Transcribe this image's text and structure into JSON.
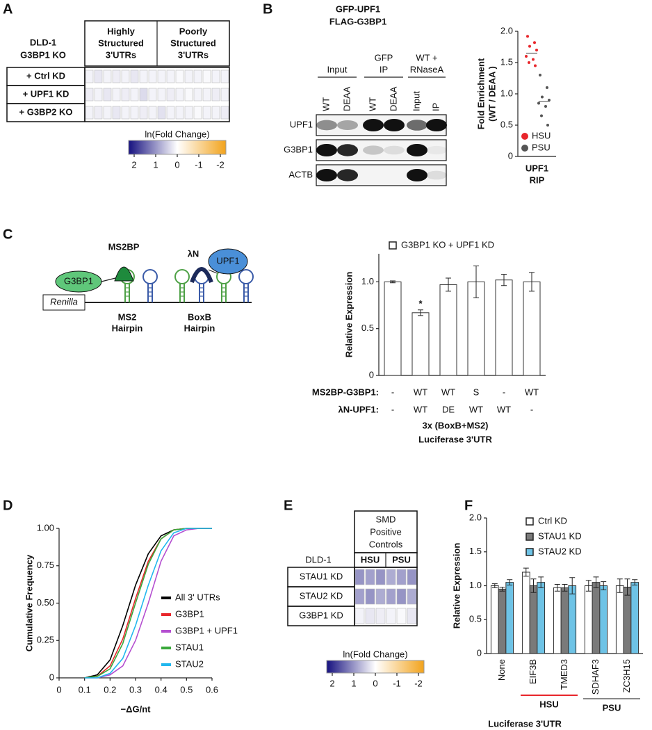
{
  "panel_labels": [
    "A",
    "B",
    "C",
    "D",
    "E",
    "F"
  ],
  "panel_a": {
    "row_header": [
      "DLD-1",
      "G3BP1 KO"
    ],
    "column_groups": [
      [
        "Highly",
        "Structured",
        "3'UTRs"
      ],
      [
        "Poorly",
        "Structured",
        "3'UTRs"
      ]
    ],
    "rows": [
      {
        "label": "+ Ctrl KD",
        "values": [
          0.1,
          0.2,
          0.1,
          0.15,
          0.1,
          0.2,
          0.1,
          0.1,
          0.1,
          0.1,
          0.05,
          0.1,
          0.1,
          0.05,
          0.1,
          0.1
        ]
      },
      {
        "label": "+ UPF1 KD",
        "values": [
          0.15,
          0.1,
          0.2,
          0.1,
          0.15,
          0.1,
          0.3,
          0.1,
          0.1,
          0.15,
          0.1,
          0.05,
          0.1,
          0.1,
          0.15,
          0.1
        ]
      },
      {
        "label": "+ G3BP2 KO",
        "values": [
          0.1,
          0.15,
          0.1,
          0.2,
          0.1,
          0.1,
          0.15,
          0.1,
          0.25,
          0.1,
          0.1,
          0.1,
          0.05,
          0.1,
          0.1,
          0.15
        ]
      }
    ],
    "colorbar": {
      "label": "ln(Fold Change)",
      "lim": [
        2,
        -2
      ],
      "ticks": [
        2,
        1,
        0,
        -1,
        -2
      ],
      "colors": [
        "#16117f",
        "#ffffff",
        "#f2a31c"
      ]
    }
  },
  "panel_b_blot": {
    "title": [
      "GFP-UPF1",
      "FLAG-G3BP1"
    ],
    "groups": [
      [
        "Input"
      ],
      [
        "GFP",
        "IP"
      ],
      [
        "WT +",
        "RNaseA"
      ]
    ],
    "lanes": [
      "WT",
      "DEAA",
      "WT",
      "DEAA",
      "Input",
      "IP"
    ],
    "rows": [
      "UPF1",
      "G3BP1",
      "ACTB"
    ]
  },
  "panel_c_diagram": {
    "ms2bp": "MS2BP",
    "g3bp1": "G3BP1",
    "lambda_n": "λN",
    "upf1": "UPF1",
    "renilla": "Renilla",
    "ms2_hairpin": [
      "MS2",
      "Hairpin"
    ],
    "boxb_hairpin": [
      "BoxB",
      "Hairpin"
    ]
  },
  "panel_e": {
    "title": [
      "SMD",
      "Positive",
      "Controls"
    ],
    "row_header": "DLD-1",
    "column_groups": [
      "HSU",
      "PSU"
    ],
    "rows": [
      {
        "label": "STAU1 KD",
        "values": [
          0.9,
          0.8,
          0.9,
          0.7,
          0.8,
          0.9
        ]
      },
      {
        "label": "STAU2 KD",
        "values": [
          0.8,
          0.9,
          0.7,
          0.8,
          0.9,
          0.7
        ]
      },
      {
        "label": "G3BP1 KD",
        "values": [
          0.1,
          0.2,
          0.15,
          0.1,
          0.05,
          0.2
        ]
      }
    ],
    "colorbar": {
      "label": "ln(Fold Change)",
      "lim": [
        2,
        -2
      ],
      "ticks": [
        2,
        1,
        0,
        -1,
        -2
      ],
      "colors": [
        "#16117f",
        "#ffffff",
        "#f2a31c"
      ]
    }
  },
  "chart_data": [
    {
      "type": "strip",
      "ylabel": [
        "Fold Enrichment",
        "(WT / DEAA )"
      ],
      "xlabel": [
        "UPF1",
        "RIP"
      ],
      "ylim": [
        0,
        2
      ],
      "yticks": [
        0,
        0.5,
        {
          "value": 1,
          "label": "1.0"
        },
        1.5,
        {
          "value": 2,
          "label": "2.0"
        }
      ],
      "series": [
        {
          "name": "HSU",
          "color": "#e8262b",
          "values": [
            1.92,
            1.82,
            1.76,
            1.7,
            1.6,
            1.55,
            1.5,
            1.45
          ],
          "mean": 1.65
        },
        {
          "name": "PSU",
          "color": "#555555",
          "values": [
            1.3,
            1.1,
            0.95,
            0.9,
            0.85,
            0.8,
            0.65,
            0.5
          ],
          "mean": 0.88
        }
      ]
    },
    {
      "type": "bar",
      "ylabel": "Relative Expression",
      "xlabel": [
        "3x (BoxB+MS2)",
        "Luciferase 3'UTR"
      ],
      "ylim": [
        0,
        1.3
      ],
      "yticks": [
        0,
        0.5,
        {
          "value": 1,
          "label": "1.0"
        }
      ],
      "series": [
        {
          "name": "G3BP1 KO + UPF1 KD",
          "color": "#ffffff",
          "values": [
            1,
            0.67,
            0.97,
            1,
            1.02,
            1
          ],
          "errors": [
            0.01,
            0.03,
            0.07,
            0.17,
            0.06,
            0.1
          ]
        }
      ],
      "rows": [
        {
          "label": "MS2BP-G3BP1:",
          "values": [
            "-",
            "WT",
            "WT",
            "S",
            "-",
            "WT"
          ]
        },
        {
          "label": "λN-UPF1:",
          "values": [
            "-",
            "WT",
            "DE",
            "WT",
            "WT",
            "-"
          ]
        }
      ],
      "annotations": [
        {
          "text": "*",
          "category": 1
        }
      ]
    },
    {
      "type": "line",
      "ylabel": "Cumulative Frequency",
      "xlabel": "−ΔG/nt",
      "xlim": [
        0,
        0.6
      ],
      "xticks": [
        0,
        0.1,
        0.2,
        0.3,
        0.4,
        0.5,
        0.6
      ],
      "ylim": [
        0,
        1
      ],
      "yticks": [
        0,
        0.25,
        {
          "value": 0.5,
          "label": "0.50"
        },
        0.75,
        {
          "value": 1,
          "label": "1.00"
        }
      ],
      "x": [
        0.1,
        0.15,
        0.2,
        0.25,
        0.3,
        0.35,
        0.4,
        0.45,
        0.5,
        0.55,
        0.6
      ],
      "series": [
        {
          "name": "All 3' UTRs",
          "color": "#000000",
          "values": [
            0,
            0.02,
            0.12,
            0.35,
            0.62,
            0.83,
            0.95,
            0.99,
            1,
            1,
            1
          ]
        },
        {
          "name": "G3BP1",
          "color": "#e8262b",
          "values": [
            0,
            0.01,
            0.08,
            0.26,
            0.53,
            0.78,
            0.93,
            0.99,
            1,
            1,
            1
          ]
        },
        {
          "name": "G3BP1 + UPF1",
          "color": "#b44fd0",
          "values": [
            0,
            0,
            0.02,
            0.08,
            0.25,
            0.5,
            0.78,
            0.95,
            0.99,
            1,
            1
          ]
        },
        {
          "name": "STAU1",
          "color": "#39a83a",
          "values": [
            0,
            0.01,
            0.06,
            0.23,
            0.5,
            0.76,
            0.93,
            0.99,
            1,
            1,
            1
          ]
        },
        {
          "name": "STAU2",
          "color": "#21b7ee",
          "values": [
            0,
            0,
            0.03,
            0.13,
            0.35,
            0.62,
            0.85,
            0.97,
            1,
            1,
            1
          ]
        }
      ]
    },
    {
      "type": "bar",
      "ylabel": "Relative Expression",
      "xlabel": [
        "Luciferase 3'UTR"
      ],
      "ylim": [
        0,
        2
      ],
      "yticks": [
        0,
        0.5,
        {
          "value": 1,
          "label": "1.0"
        },
        1.5,
        {
          "value": 2,
          "label": "2.0"
        }
      ],
      "categories": [
        "None",
        "EIF3B",
        "TMED3",
        "SDHAF3",
        "ZC3H15"
      ],
      "series": [
        {
          "name": "Ctrl KD",
          "color": "#ffffff",
          "values": [
            1,
            1.2,
            0.97,
            1,
            1
          ],
          "errors": [
            0.03,
            0.06,
            0.05,
            0.08,
            0.1
          ]
        },
        {
          "name": "STAU1 KD",
          "color": "#7a7a7a",
          "values": [
            0.95,
            1,
            0.97,
            1.05,
            0.98
          ],
          "errors": [
            0.03,
            0.1,
            0.05,
            0.08,
            0.12
          ]
        },
        {
          "name": "STAU2 KD",
          "color": "#6ec3e6",
          "values": [
            1.05,
            1.05,
            1,
            1,
            1.05
          ],
          "errors": [
            0.04,
            0.08,
            0.12,
            0.06,
            0.04
          ]
        }
      ],
      "groups": [
        {
          "label": "HSU",
          "color": "#e8262b",
          "categories": [
            1,
            2
          ]
        },
        {
          "label": "PSU",
          "color": "#888888",
          "categories": [
            3,
            4
          ]
        }
      ]
    }
  ]
}
